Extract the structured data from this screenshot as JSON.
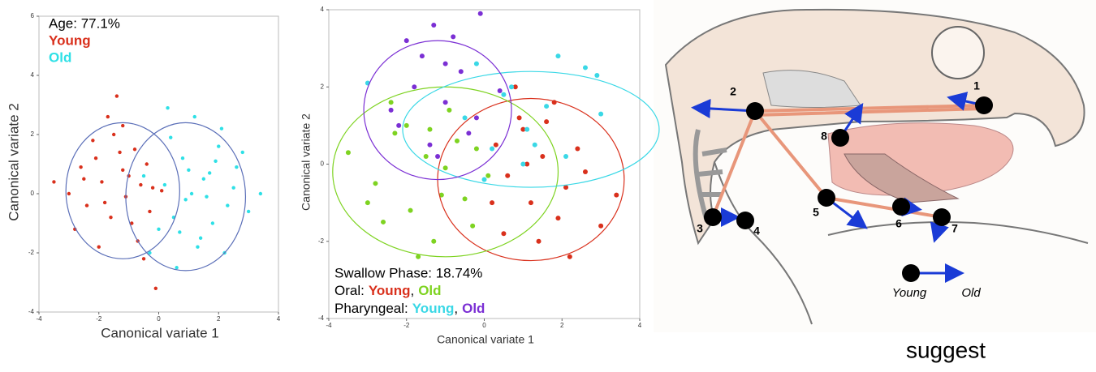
{
  "chart_data": [
    {
      "type": "scatter",
      "xlabel": "Canonical variate 1",
      "ylabel": "Canonical variate 2",
      "annotation": "Age: 77.1%",
      "xlim": [
        -4,
        4
      ],
      "ylim": [
        -4,
        6
      ],
      "xticks": [
        -4,
        -2,
        0,
        2,
        4
      ],
      "yticks": [
        -4,
        -2,
        0,
        2,
        4,
        6
      ],
      "ellipse_color": "#5b6fb8",
      "series": [
        {
          "name": "Young",
          "color": "#d9301c",
          "x": [
            -2.5,
            -2.1,
            -1.8,
            -1.5,
            -1.2,
            -0.9,
            -0.6,
            -0.3,
            0.1,
            -3.0,
            -2.8,
            -2.2,
            -1.9,
            -1.6,
            -1.3,
            -1.0,
            -0.7,
            -0.4,
            -2.4,
            -1.7,
            -1.1,
            -0.8,
            -2.0,
            -1.4,
            -0.5,
            -3.5,
            -0.1,
            -1.2,
            -2.6,
            -0.2
          ],
          "y": [
            0.5,
            1.2,
            -0.3,
            2.0,
            0.8,
            -1.0,
            0.3,
            -0.6,
            0.1,
            0.0,
            -1.2,
            1.8,
            0.4,
            -0.8,
            1.4,
            0.6,
            -1.6,
            1.0,
            -0.4,
            2.6,
            -0.1,
            1.5,
            -1.8,
            3.3,
            -2.2,
            0.4,
            -3.2,
            2.3,
            0.9,
            0.2
          ],
          "ellipse": {
            "cx": -1.2,
            "cy": 0.1,
            "rx": 1.9,
            "ry": 2.3
          }
        },
        {
          "name": "Old",
          "color": "#2ee0e6",
          "x": [
            0.2,
            0.5,
            0.8,
            1.1,
            1.4,
            1.7,
            2.0,
            2.3,
            2.6,
            0.0,
            0.4,
            0.9,
            1.2,
            1.5,
            1.8,
            2.1,
            2.5,
            3.0,
            -0.3,
            0.6,
            1.0,
            1.3,
            1.9,
            2.8,
            3.4,
            0.3,
            0.7,
            1.6,
            2.2,
            -0.5
          ],
          "y": [
            0.3,
            -0.8,
            1.2,
            0.0,
            -1.5,
            0.7,
            1.6,
            -0.4,
            0.9,
            -1.2,
            1.9,
            -0.2,
            2.6,
            0.5,
            -1.0,
            2.2,
            0.2,
            -0.6,
            -2.0,
            -2.5,
            0.8,
            -1.8,
            1.1,
            1.4,
            0.0,
            2.9,
            -1.3,
            -0.1,
            -2.0,
            0.6
          ],
          "ellipse": {
            "cx": 0.9,
            "cy": -0.1,
            "rx": 2.0,
            "ry": 2.5
          }
        }
      ]
    },
    {
      "type": "scatter",
      "xlabel": "Canonical variate 1",
      "ylabel": "Canonical variate 2",
      "annotation": "Swallow Phase: 18.74%",
      "xlim": [
        -4,
        4
      ],
      "ylim": [
        -4,
        4
      ],
      "xticks": [
        -4,
        -2,
        0,
        2,
        4
      ],
      "yticks": [
        -4,
        -2,
        0,
        2,
        4
      ],
      "legend_groups": [
        {
          "label": "Oral:",
          "separator": ",",
          "series": [
            0,
            1
          ]
        },
        {
          "label": "Pharyngeal:",
          "separator": ",",
          "series": [
            2,
            3
          ]
        }
      ],
      "series": [
        {
          "name": "Young",
          "color": "#d9301c",
          "x": [
            0.3,
            0.6,
            0.9,
            1.2,
            1.5,
            1.8,
            2.1,
            2.4,
            0.5,
            1.0,
            1.4,
            1.9,
            2.6,
            3.0,
            0.8,
            1.6,
            2.2,
            3.4,
            0.2,
            1.1
          ],
          "y": [
            0.5,
            -0.3,
            1.2,
            -1.0,
            0.2,
            1.6,
            -0.6,
            0.4,
            -1.8,
            0.9,
            -2.0,
            -1.4,
            -0.2,
            -1.6,
            2.0,
            1.1,
            -2.4,
            -0.8,
            -1.0,
            0.0
          ],
          "ellipse": {
            "cx": 1.2,
            "cy": -0.4,
            "rx": 2.4,
            "ry": 2.1
          }
        },
        {
          "name": "Old",
          "color": "#7ed321",
          "x": [
            -3.5,
            -2.8,
            -2.3,
            -1.9,
            -1.5,
            -1.1,
            -0.7,
            -0.3,
            0.1,
            -2.6,
            -2.0,
            -1.3,
            -0.9,
            -0.5,
            -1.7,
            -2.4,
            -1.0,
            -0.2,
            -3.0,
            -1.4
          ],
          "y": [
            0.3,
            -0.5,
            0.8,
            -1.2,
            0.2,
            -0.8,
            0.6,
            -1.6,
            -0.3,
            -1.5,
            1.0,
            -2.0,
            1.4,
            -0.9,
            -2.4,
            1.6,
            -0.1,
            0.4,
            -1.0,
            0.9
          ],
          "ellipse": {
            "cx": -1.0,
            "cy": -0.2,
            "rx": 2.9,
            "ry": 2.2
          }
        },
        {
          "name": "Young",
          "color": "#3ad8e6",
          "x": [
            -0.5,
            0.2,
            0.7,
            1.1,
            1.6,
            2.1,
            2.6,
            3.0,
            -0.2,
            0.5,
            1.3,
            1.9,
            2.9,
            -3.0,
            0.0,
            1.0
          ],
          "y": [
            1.2,
            0.4,
            2.0,
            0.9,
            1.5,
            0.2,
            2.5,
            1.3,
            2.6,
            1.8,
            0.5,
            2.8,
            2.3,
            2.1,
            -0.4,
            0.0
          ],
          "ellipse": {
            "cx": 1.2,
            "cy": 0.9,
            "rx": 3.3,
            "ry": 1.5
          }
        },
        {
          "name": "Old",
          "color": "#7b2fd4",
          "x": [
            -2.2,
            -1.8,
            -1.4,
            -1.0,
            -0.6,
            -0.2,
            -1.6,
            -1.2,
            -0.8,
            -2.0,
            -0.4,
            -1.0,
            0.4,
            -2.4,
            -0.1,
            -1.3
          ],
          "y": [
            1.0,
            2.0,
            0.5,
            1.6,
            2.4,
            1.2,
            2.8,
            0.2,
            3.3,
            3.2,
            0.8,
            2.6,
            1.9,
            1.4,
            3.9,
            3.6
          ],
          "ellipse": {
            "cx": -1.2,
            "cy": 1.4,
            "rx": 1.9,
            "ry": 1.8
          }
        }
      ]
    }
  ],
  "diagram": {
    "nodes": [
      "1",
      "2",
      "3",
      "4",
      "5",
      "6",
      "7",
      "8"
    ],
    "legend": {
      "young": "Young",
      "old": "Old"
    }
  },
  "caption": "suggest"
}
